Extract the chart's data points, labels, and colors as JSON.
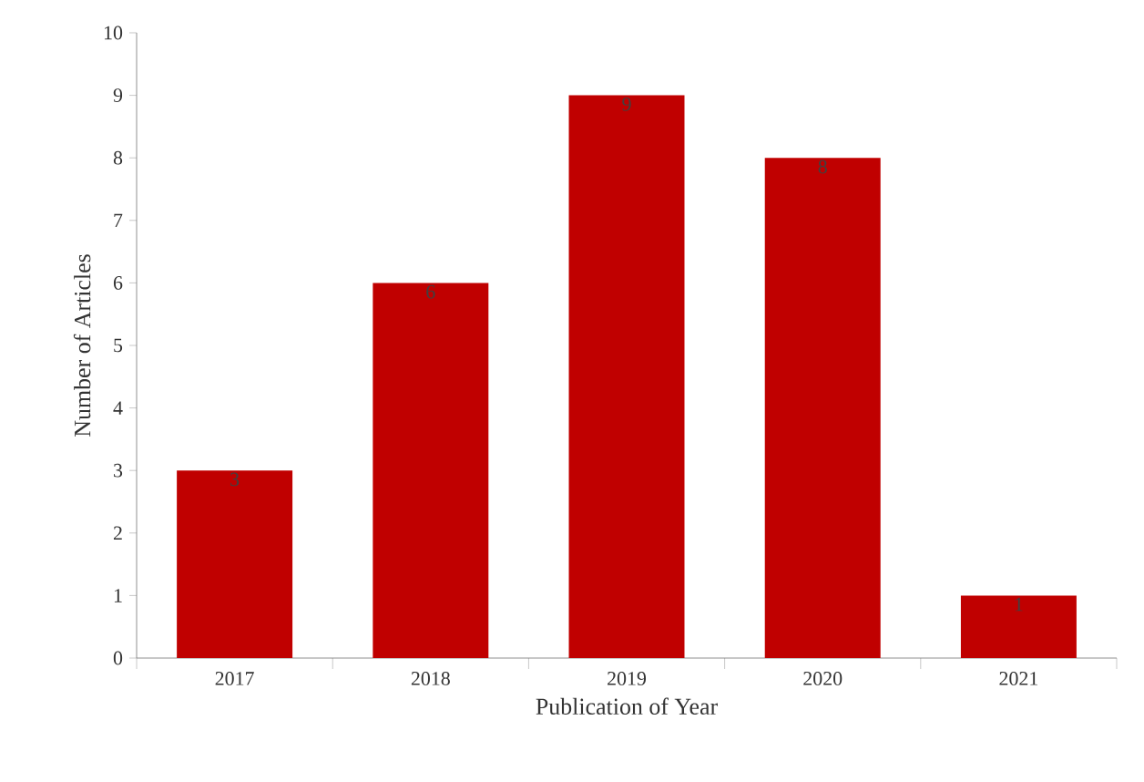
{
  "chart_data": {
    "type": "bar",
    "xlabel": "Publication of Year",
    "ylabel": "Number of Articles",
    "categories": [
      "2017",
      "2018",
      "2019",
      "2020",
      "2021"
    ],
    "values": [
      3,
      6,
      9,
      8,
      1
    ],
    "color": "#c00000",
    "ylim": [
      0,
      10
    ],
    "yticks": [
      0,
      1,
      2,
      3,
      4,
      5,
      6,
      7,
      8,
      9,
      10
    ],
    "data_labels": true
  }
}
